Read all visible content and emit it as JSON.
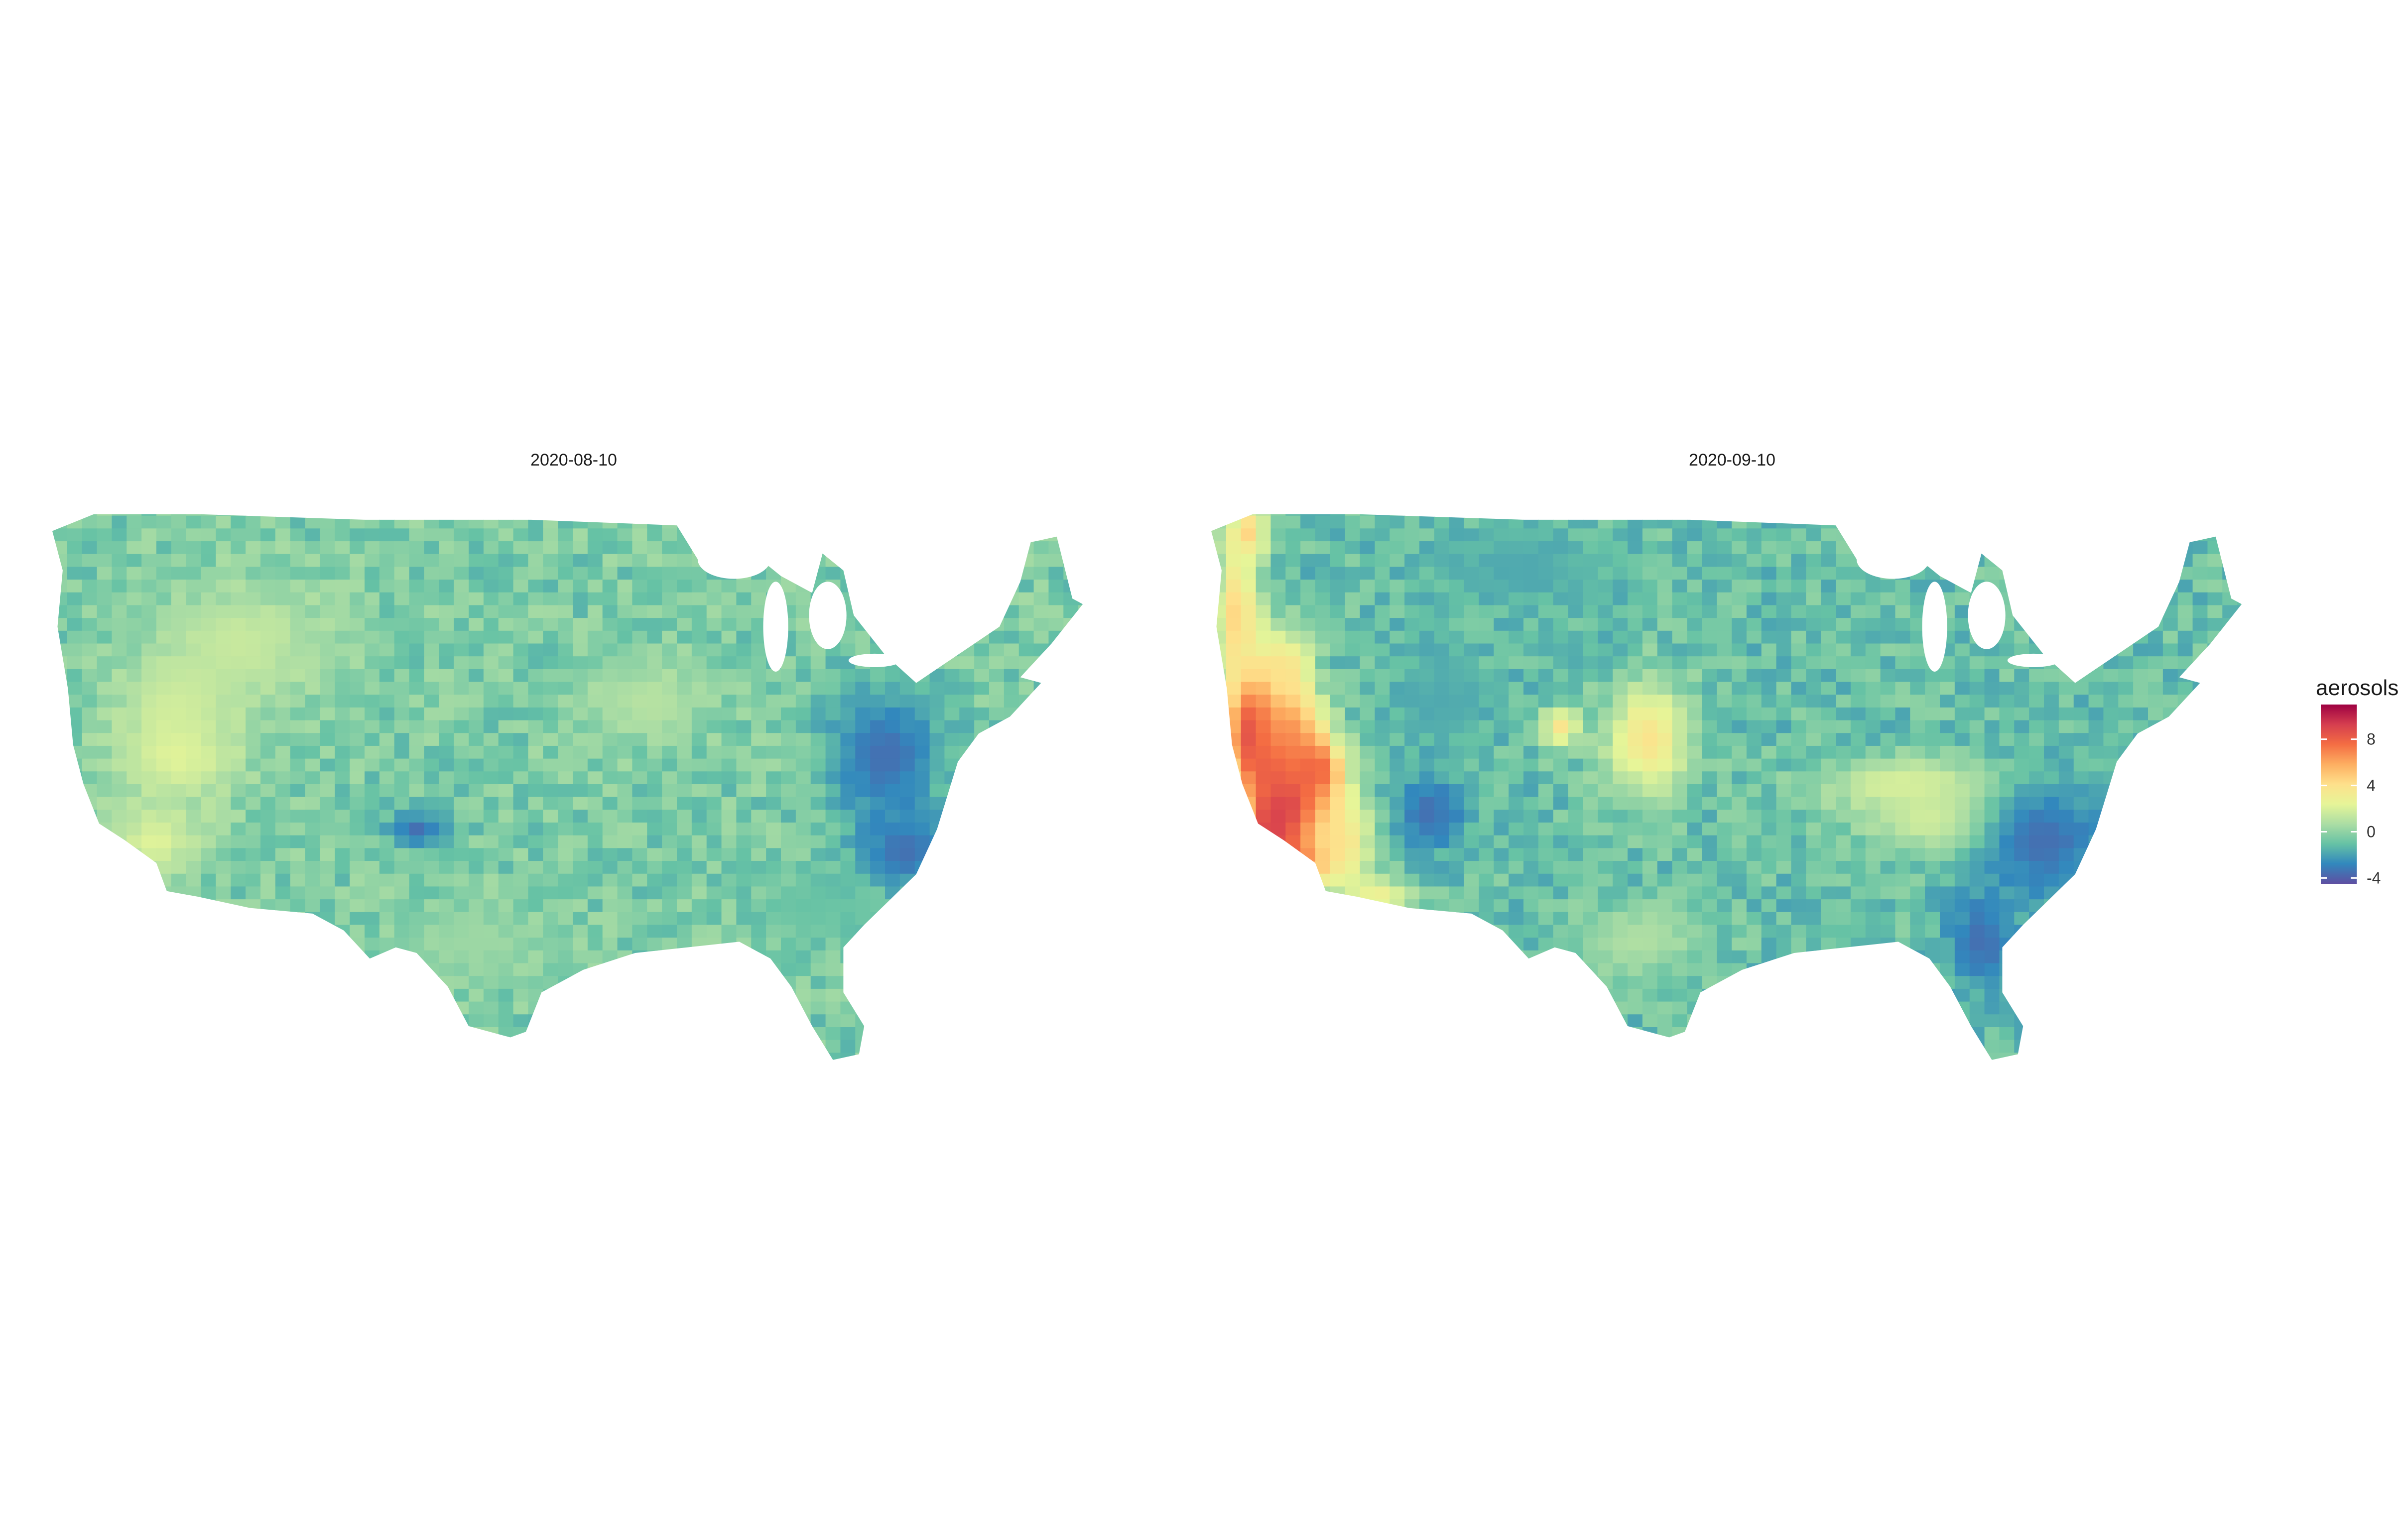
{
  "chart_data": {
    "type": "choropleth",
    "panels": [
      {
        "title": "2020-08-10",
        "base_value": -0.5,
        "hotspots": [
          {
            "region": "northern-mountain-west",
            "value": 1.5
          },
          {
            "region": "nevada-utah",
            "value": 2.2
          },
          {
            "region": "great-lakes-ohio-valley",
            "value": 1.0
          },
          {
            "region": "mid-atlantic-carolinas",
            "value": -3.5
          },
          {
            "region": "southeast-gulf",
            "value": -1.0
          },
          {
            "region": "texas-south-plains",
            "value": 0.3
          }
        ]
      },
      {
        "title": "2020-09-10",
        "base_value": -1.0,
        "hotspots": [
          {
            "region": "california-coast",
            "value": 11.0
          },
          {
            "region": "california-central-valley",
            "value": 8.5
          },
          {
            "region": "southern-california",
            "value": 9.5
          },
          {
            "region": "sierra-nevada",
            "value": 7.0
          },
          {
            "region": "oregon-coast",
            "value": 4.5
          },
          {
            "region": "western-nevada",
            "value": 4.0
          },
          {
            "region": "arizona-border",
            "value": 3.0
          },
          {
            "region": "central-plains",
            "value": 3.8
          },
          {
            "region": "appalachian-corridor",
            "value": 2.0
          },
          {
            "region": "southeast-coast",
            "value": -3.5
          },
          {
            "region": "northern-plains",
            "value": -1.8
          },
          {
            "region": "texas",
            "value": 0.8
          }
        ]
      }
    ],
    "legend": {
      "title": "aerosols",
      "ticks": [
        8,
        4,
        0,
        -4
      ],
      "range": [
        -4.5,
        11
      ],
      "position": "right",
      "palette": [
        "#5e4fa2",
        "#3288bd",
        "#66c2a5",
        "#abdda4",
        "#e6f598",
        "#fee08b",
        "#fdae61",
        "#f46d43",
        "#d53e4f",
        "#9e0142"
      ]
    },
    "grid": false
  }
}
